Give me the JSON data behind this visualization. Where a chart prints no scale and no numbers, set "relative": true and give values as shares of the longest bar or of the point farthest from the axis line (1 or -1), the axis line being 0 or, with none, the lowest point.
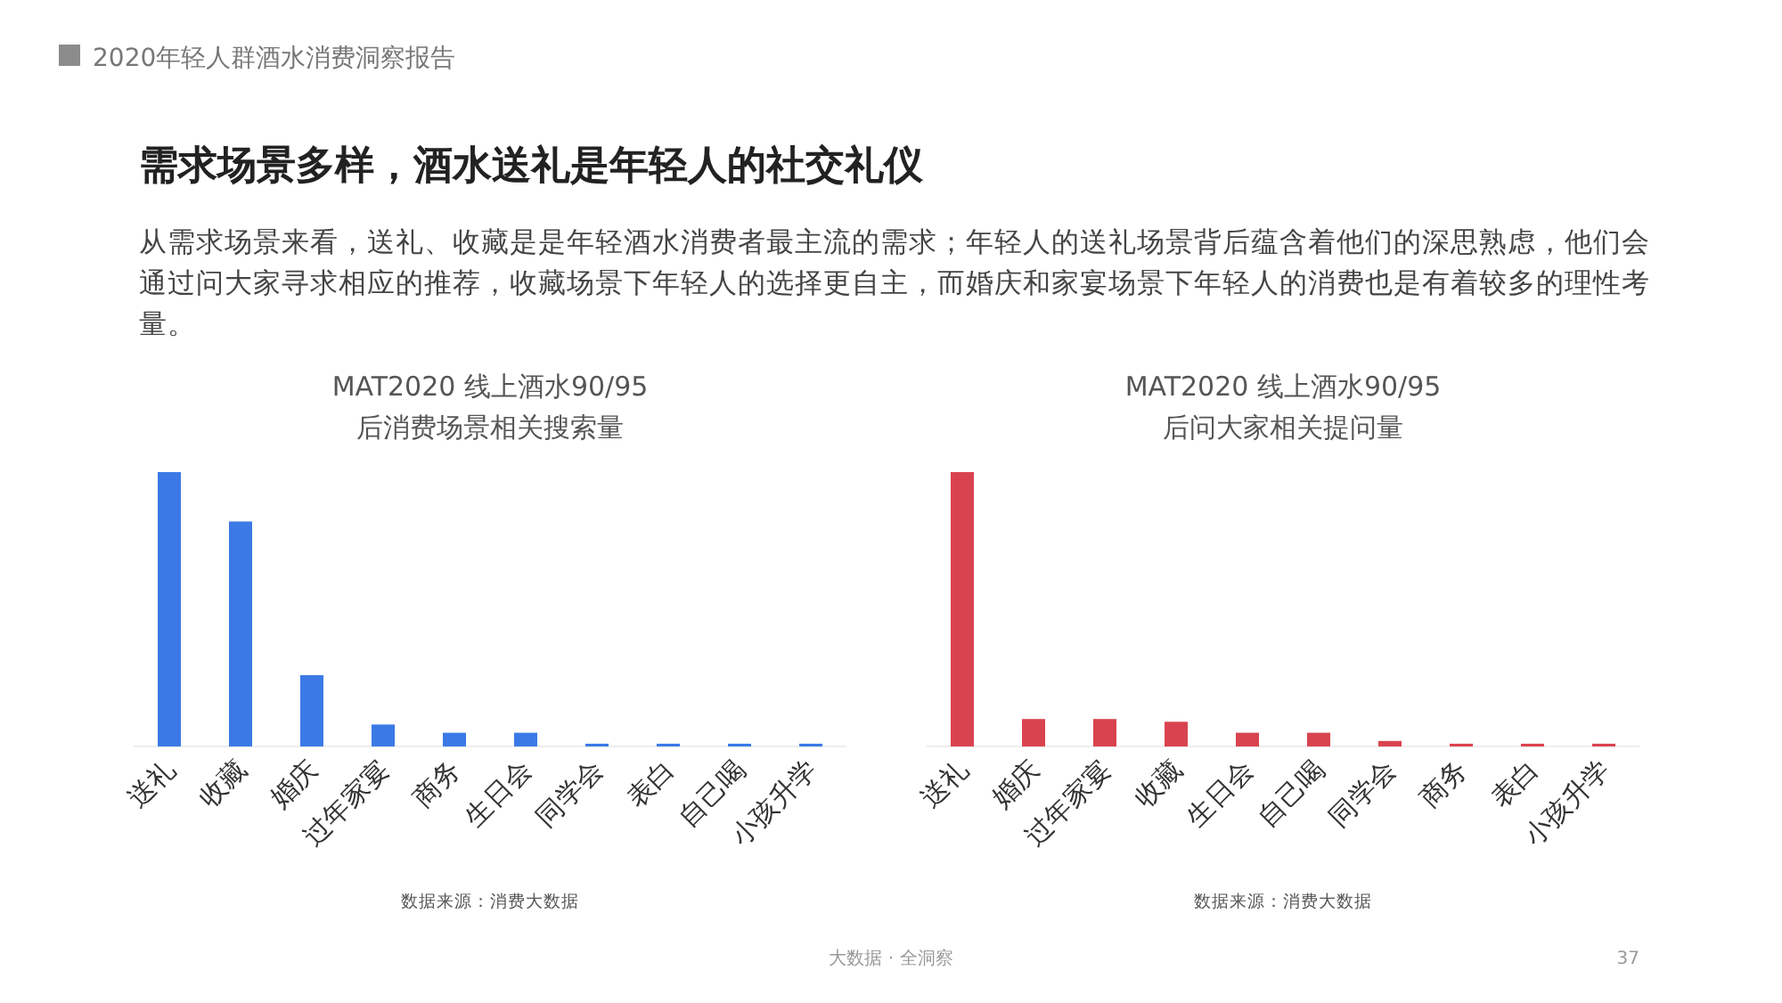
{
  "chart_data": [
    {
      "type": "other",
      "title": "需求场景多样，酒水送礼是年轻人的社交礼仪",
      "subtitle": "从需求场景来看，送礼、收藏是是年轻酒水消费者最主流的需求；年轻人的送礼场景背后蕴含着他们的深思熟虑，他们会通过问大家寻求相应的推荐，收藏场景下年轻人的选择更自主，而婚庆和家宴场景下年轻人的消费也是有着较多的理性考量。",
      "annotations": [
        "2020年轻人群酒水消费洞察报告",
        "大数据 · 全洞察",
        "37"
      ]
    },
    {
      "type": "bar",
      "title": "MAT2020 线上酒水90/95后消费场景相关搜索量",
      "relative": true,
      "categories": [
        "送礼",
        "收藏",
        "婚庆",
        "过年家宴",
        "商务",
        "生日会",
        "同学会",
        "表白",
        "自己喝",
        "小孩升学"
      ],
      "series": [
        {
          "color": "#3b7ae6",
          "values": [
            1,
            0.82,
            0.26,
            0.08,
            0.05,
            0.05,
            0.01,
            0.01,
            0.01,
            0.01
          ]
        }
      ],
      "annotations": [
        "数据来源：消费大数据"
      ]
    },
    {
      "type": "bar",
      "title": "MAT2020 线上酒水90/95后问大家相关提问量",
      "relative": true,
      "categories": [
        "送礼",
        "婚庆",
        "过年家宴",
        "收藏",
        "生日会",
        "自己喝",
        "同学会",
        "商务",
        "表白",
        "小孩升学"
      ],
      "series": [
        {
          "color": "#d9434f",
          "values": [
            1,
            0.1,
            0.1,
            0.09,
            0.05,
            0.05,
            0.02,
            0.01,
            0.01,
            0.01
          ]
        }
      ],
      "annotations": [
        "数据来源：消费大数据"
      ]
    }
  ]
}
